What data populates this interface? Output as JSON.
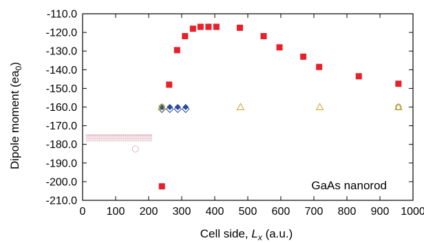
{
  "chart_data": {
    "type": "scatter",
    "title": "",
    "xlabel": "Cell side, L_x (a.u.)",
    "xlabel_parts": {
      "prefix": "Cell side, ",
      "var": "L",
      "sub": "x",
      "suffix": " (a.u.)"
    },
    "ylabel": "Dipole moment (ea0)",
    "ylabel_parts": {
      "prefix": "Dipole moment (ea",
      "sub": "0",
      "suffix": ")"
    },
    "xlim": [
      0,
      1000
    ],
    "ylim": [
      -210,
      -110
    ],
    "xticks": [
      0,
      100,
      200,
      300,
      400,
      500,
      600,
      700,
      800,
      900,
      1000
    ],
    "yticks": [
      -210,
      -200,
      -190,
      -180,
      -170,
      -160,
      -150,
      -140,
      -130,
      -120,
      -110
    ],
    "ytick_labels": [
      "-210.0",
      "-200.0",
      "-190.0",
      "-180.0",
      "-170.0",
      "-160.0",
      "-150.0",
      "-140.0",
      "-130.0",
      "-120.0",
      "-110.0"
    ],
    "grid": false,
    "legend": null,
    "annotation": "GaAs nanorod",
    "series": [
      {
        "marker": "square",
        "color": "#e8202a",
        "points": [
          [
            240,
            -202.5
          ],
          [
            262,
            -148
          ],
          [
            286,
            -129.5
          ],
          [
            310,
            -122
          ],
          [
            334,
            -118
          ],
          [
            357,
            -117
          ],
          [
            381,
            -117
          ],
          [
            405,
            -117
          ],
          [
            476,
            -117.5
          ],
          [
            548,
            -122
          ],
          [
            596,
            -128
          ],
          [
            668,
            -133
          ],
          [
            716,
            -138.5
          ],
          [
            836,
            -143.5
          ],
          [
            956,
            -147.5
          ]
        ]
      },
      {
        "marker": "diamond-filled",
        "color": "#2a4a9a",
        "points": [
          [
            240,
            -160
          ],
          [
            264,
            -160
          ],
          [
            288,
            -160
          ],
          [
            312,
            -160
          ]
        ]
      },
      {
        "marker": "diamond-open",
        "color": "#2a4a9a",
        "points": [
          [
            240,
            -160
          ],
          [
            264,
            -160
          ],
          [
            288,
            -160
          ],
          [
            312,
            -160
          ]
        ]
      },
      {
        "marker": "triangle-open",
        "color": "#d4a020",
        "points": [
          [
            240,
            -160
          ],
          [
            478,
            -160
          ],
          [
            718,
            -160
          ],
          [
            956,
            -160
          ]
        ]
      },
      {
        "marker": "circle-open",
        "color": "#9a9a40",
        "points": [
          [
            240,
            -160
          ],
          [
            956,
            -160
          ]
        ]
      },
      {
        "marker": "hexagon-open",
        "color": "#d090a0",
        "points": [
          [
            160,
            -182.5
          ]
        ]
      }
    ],
    "inset_band": {
      "x_range": [
        10,
        210
      ],
      "y_range": [
        -175,
        -178
      ],
      "color": "#c04858"
    }
  }
}
